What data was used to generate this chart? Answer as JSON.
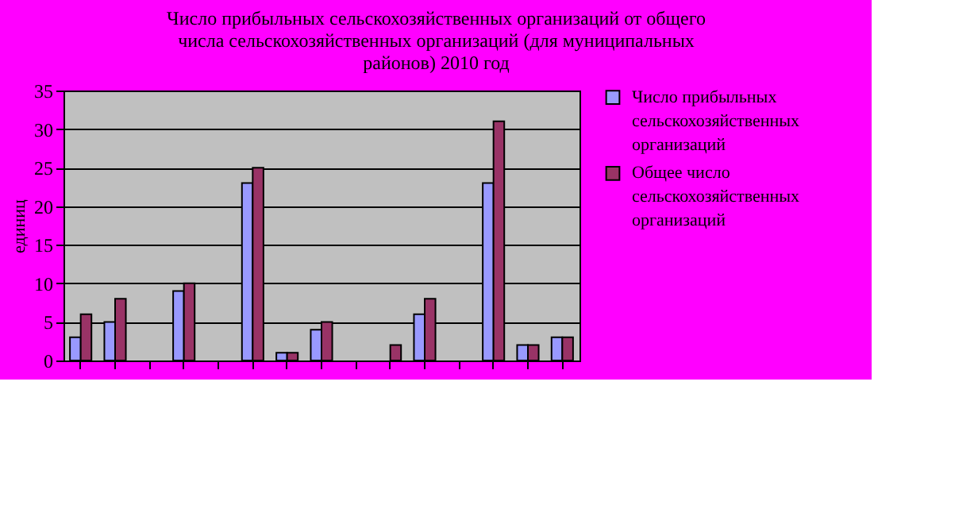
{
  "chart_data": {
    "type": "bar",
    "title": "Число прибыльных сельскохозяйственных организаций от общего числа сельскохозяйственных организаций (для муниципальных районов) 2010 год",
    "ylabel": "единиц",
    "categories": [
      null,
      null,
      null,
      null,
      null,
      null,
      null,
      null,
      null,
      null,
      null,
      null,
      null,
      null,
      null
    ],
    "series": [
      {
        "name": "Число прибыльных сельскохозяйственных организаций",
        "color": "#9999ff",
        "values": [
          3,
          5,
          0,
          9,
          0,
          23,
          1,
          4,
          0,
          0,
          6,
          0,
          23,
          2,
          3
        ]
      },
      {
        "name": "Общее число сельскохозяйственных организаций",
        "color": "#993366",
        "values": [
          6,
          8,
          0,
          10,
          0,
          25,
          1,
          5,
          0,
          2,
          8,
          0,
          31,
          2,
          3
        ]
      }
    ],
    "ylim": [
      0,
      35
    ],
    "yticks": [
      0,
      5,
      10,
      15,
      20,
      25,
      30,
      35
    ],
    "grid": "y",
    "legend": "right",
    "tick_labels": "y"
  }
}
